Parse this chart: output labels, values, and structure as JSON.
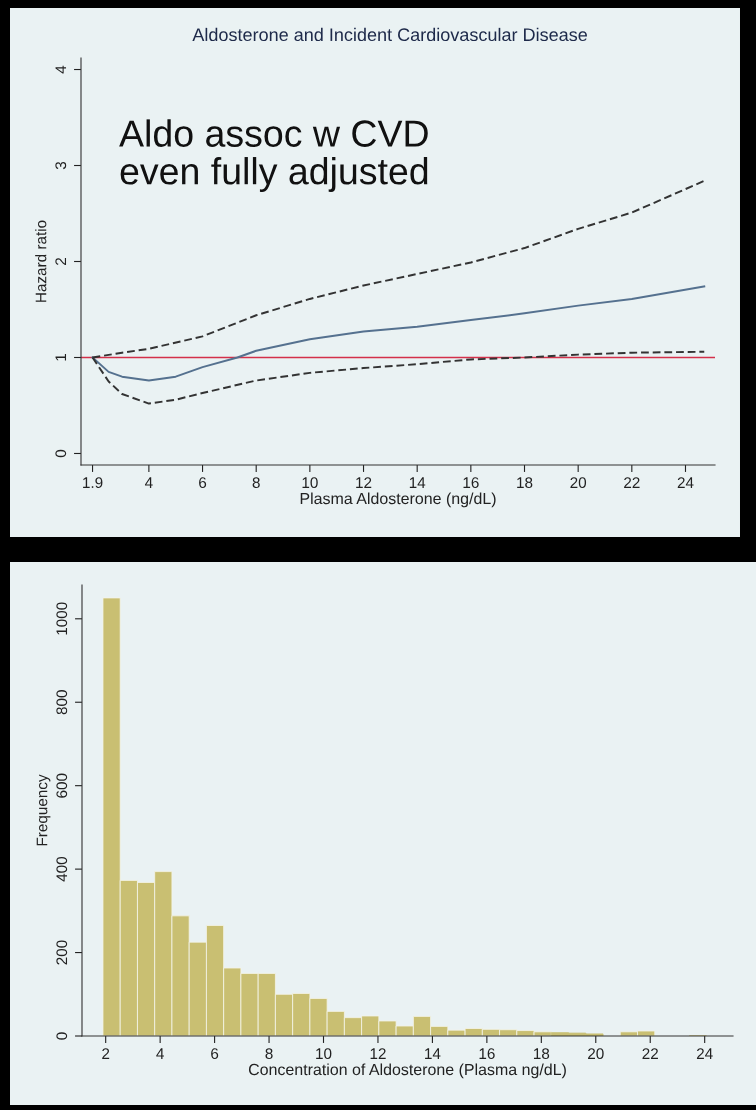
{
  "chart_data": [
    {
      "type": "line",
      "title": "Aldosterone and Incident Cardiovascular Disease",
      "xlabel": "Plasma Aldosterone (ng/dL)",
      "ylabel": "Hazard ratio",
      "annotations": [
        "Aldo assoc w CVD\neven fully adjusted"
      ],
      "series": [
        {
          "color": "#55718f",
          "line_style": "solid",
          "x": [
            1.9,
            2.5,
            3,
            4,
            5,
            6,
            7.3,
            8,
            10,
            12,
            14,
            16,
            18,
            20,
            22,
            24.7
          ],
          "values": [
            1,
            0.85,
            0.8,
            0.76,
            0.8,
            0.9,
            1,
            1.07,
            1.19,
            1.27,
            1.32,
            1.39,
            1.46,
            1.54,
            1.61,
            1.74
          ]
        },
        {
          "color": "#333333",
          "line_style": "dashed",
          "x": [
            1.9,
            3,
            4,
            6,
            8,
            10,
            12,
            14,
            16,
            18,
            20,
            22,
            24.7
          ],
          "values": [
            1,
            1.05,
            1.09,
            1.22,
            1.44,
            1.61,
            1.75,
            1.87,
            1.99,
            2.14,
            2.34,
            2.51,
            2.84
          ]
        },
        {
          "color": "#333333",
          "line_style": "dashed",
          "x": [
            1.9,
            2.5,
            3,
            4,
            5,
            6,
            8,
            10,
            12,
            14,
            16,
            18,
            20,
            22,
            24.7
          ],
          "values": [
            1,
            0.75,
            0.62,
            0.52,
            0.56,
            0.63,
            0.76,
            0.84,
            0.89,
            0.93,
            0.98,
            1.0,
            1.03,
            1.05,
            1.06
          ]
        }
      ],
      "ref_lines": [
        {
          "axis": "y",
          "value": 1,
          "color": "#d4304a",
          "line_style": "solid"
        }
      ],
      "xlim": [
        1.47,
        25.1
      ],
      "ylim": [
        -0.12,
        4.12
      ],
      "xticks": [
        1.9,
        4,
        6,
        8,
        10,
        12,
        14,
        16,
        18,
        20,
        22,
        24
      ],
      "yticks": [
        0,
        1,
        2,
        3,
        4
      ],
      "grid": false,
      "legend": false
    },
    {
      "type": "histogram",
      "xlabel": "Concentration of Aldosterone (Plasma ng/dL)",
      "ylabel": "Frequency",
      "color": "#c9bf72",
      "bins": [
        1.9,
        2.5333,
        3.1667,
        3.8,
        4.4333,
        5.0667,
        5.7,
        6.3333,
        6.9667,
        7.6,
        8.2333,
        8.8667,
        9.5,
        10.1333,
        10.7667,
        11.4,
        12.0333,
        12.6667,
        13.3,
        13.9333,
        14.5667,
        15.2,
        15.8333,
        16.4667,
        17.1,
        17.7333,
        18.3667,
        19.0,
        19.6333,
        20.2667,
        20.9,
        21.5333,
        22.1667,
        22.8,
        23.4333,
        24.0667,
        24.7
      ],
      "values": [
        1050,
        373,
        368,
        394,
        288,
        225,
        265,
        163,
        150,
        150,
        100,
        102,
        90,
        59,
        44,
        48,
        36,
        24,
        47,
        23,
        14,
        18,
        16,
        15,
        13,
        10,
        8,
        7,
        5,
        null,
        10,
        12,
        null,
        null,
        0,
        null
      ],
      "xlim": [
        1.13,
        25.04
      ],
      "ylim": [
        0,
        1081
      ],
      "xticks": [
        2,
        4,
        6,
        8,
        10,
        12,
        14,
        16,
        18,
        20,
        22,
        24
      ],
      "yticks": [
        0,
        200,
        400,
        600,
        800,
        1000
      ],
      "grid": false
    }
  ]
}
